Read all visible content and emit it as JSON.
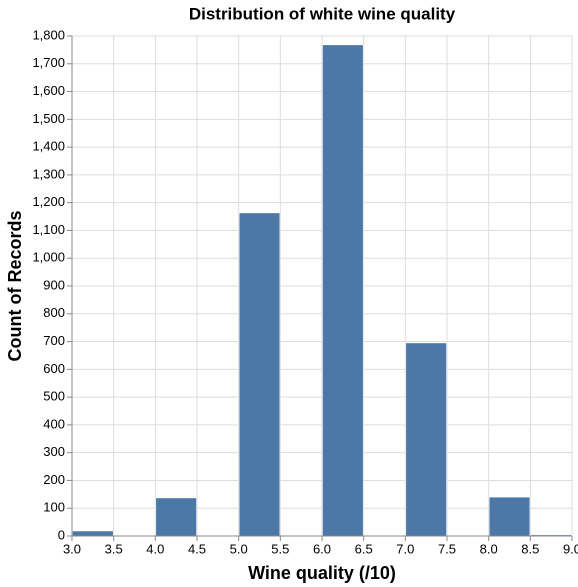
{
  "chart_data": {
    "type": "histogram",
    "title": "Distribution of white wine quality",
    "x_label": "Wine quality (/10)",
    "y_label": "Count of Records",
    "bins": [
      3.0,
      3.5,
      4.0,
      4.5,
      5.0,
      5.5,
      6.0,
      6.5,
      7.0,
      7.5,
      8.0,
      8.5,
      9.0
    ],
    "counts": [
      18,
      0,
      137,
      0,
      1163,
      0,
      1768,
      0,
      695,
      0,
      140,
      4
    ],
    "color": "#4c78a8",
    "xlim": [
      3,
      9
    ],
    "xticks": [
      {
        "value": 3,
        "label": "3.0"
      },
      3.5,
      {
        "value": 4,
        "label": "4.0"
      },
      4.5,
      {
        "value": 5,
        "label": "5.0"
      },
      5.5,
      {
        "value": 6,
        "label": "6.0"
      },
      6.5,
      {
        "value": 7,
        "label": "7.0"
      },
      7.5,
      {
        "value": 8,
        "label": "8.0"
      },
      8.5,
      {
        "value": 9,
        "label": "9.0"
      }
    ],
    "ylim": [
      0,
      1800
    ],
    "yticks": [
      0,
      100,
      200,
      300,
      400,
      500,
      600,
      700,
      800,
      900,
      {
        "value": 1000,
        "label": "1,000"
      },
      {
        "value": 1100,
        "label": "1,100"
      },
      {
        "value": 1200,
        "label": "1,200"
      },
      {
        "value": 1300,
        "label": "1,300"
      },
      {
        "value": 1400,
        "label": "1,400"
      },
      {
        "value": 1500,
        "label": "1,500"
      },
      {
        "value": 1600,
        "label": "1,600"
      },
      {
        "value": 1700,
        "label": "1,700"
      },
      {
        "value": 1800,
        "label": "1,800"
      }
    ],
    "grid": true
  }
}
